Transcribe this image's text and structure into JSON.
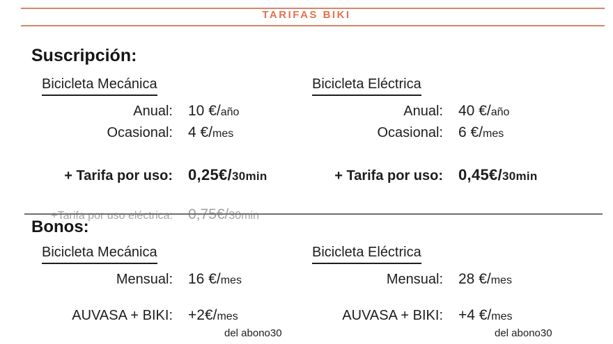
{
  "header": {
    "title": "TARIFAS BIKI"
  },
  "colors": {
    "accent_orange": "#e2724e",
    "rule_orange": "#d6876a",
    "muted_gray": "#a2a2a2",
    "text": "#1d1d1f",
    "divider_gray": "#6e6e6e"
  },
  "subscription": {
    "heading": "Suscripción:",
    "columns": [
      {
        "title": "Bicicleta Mecánica",
        "rows": [
          {
            "label": "Anual:",
            "value": "10 €/",
            "unit": "año"
          },
          {
            "label": "Ocasional:",
            "value": "4 €/",
            "unit": "mes"
          }
        ],
        "usage": {
          "label": "+ Tarifa por uso:",
          "value": "0,25€/",
          "unit": "30min"
        }
      },
      {
        "title": "Bicicleta Eléctrica",
        "rows": [
          {
            "label": "Anual:",
            "value": "40 €/",
            "unit": "año"
          },
          {
            "label": "Ocasional:",
            "value": "6 €/",
            "unit": "mes"
          }
        ],
        "usage": {
          "label": "+ Tarifa por uso:",
          "value": "0,45€/",
          "unit": "30min"
        }
      }
    ],
    "electric_note": {
      "label": "+Tarifa por uso eléctrica:",
      "value": "0,75€/",
      "unit": "30min"
    }
  },
  "bonos": {
    "heading": "Bonos:",
    "columns": [
      {
        "title": "Bicicleta Mecánica",
        "monthly": {
          "label": "Mensual:",
          "value": "16 €/",
          "unit": "mes"
        },
        "combo": {
          "label": "AUVASA + BIKI:",
          "value": "+2€/",
          "unit": "mes",
          "note": "del abono30"
        }
      },
      {
        "title": "Bicicleta Eléctrica",
        "monthly": {
          "label": "Mensual:",
          "value": "28 €/",
          "unit": "mes"
        },
        "combo": {
          "label": "AUVASA + BIKI:",
          "value": "+4 €/",
          "unit": "mes",
          "note": "del abono30"
        }
      }
    ]
  }
}
